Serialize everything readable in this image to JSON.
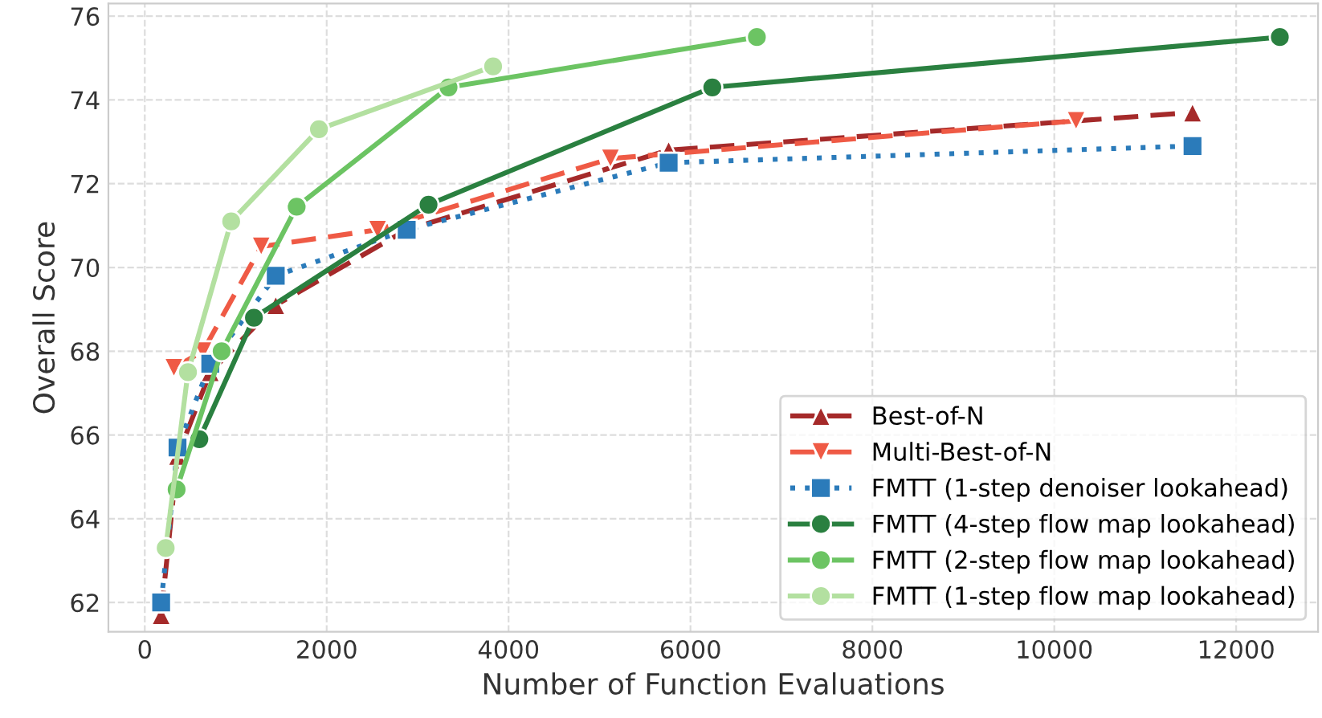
{
  "chart_data": {
    "type": "line",
    "xlabel": "Number of Function Evaluations",
    "ylabel": "Overall Score",
    "xlim": [
      -400,
      12900
    ],
    "ylim": [
      61.3,
      76.3
    ],
    "xticks": [
      0,
      2000,
      4000,
      6000,
      8000,
      10000,
      12000
    ],
    "yticks": [
      62,
      64,
      66,
      68,
      70,
      72,
      74,
      76
    ],
    "grid": true,
    "legend": "bottom right",
    "series": [
      {
        "name": "Best-of-N",
        "color": "#a52a2a",
        "marker": "triangle",
        "line_style": "dashed",
        "x": [
          180,
          360,
          720,
          1440,
          2880,
          5760,
          11520
        ],
        "values": [
          61.7,
          65.5,
          67.5,
          69.1,
          70.9,
          72.8,
          73.7
        ]
      },
      {
        "name": "Multi-Best-of-N",
        "color": "#ef5a45",
        "marker": "triangle_down",
        "line_style": "dashed",
        "x": [
          320,
          640,
          1280,
          2560,
          5120,
          10240
        ],
        "values": [
          67.6,
          68.0,
          70.5,
          70.9,
          72.6,
          73.5
        ]
      },
      {
        "name": "FMTT (1-step denoiser lookahead)",
        "color": "#2b7bba",
        "marker": "square",
        "line_style": "dotted",
        "x": [
          180,
          360,
          720,
          1440,
          2880,
          5760,
          11520
        ],
        "values": [
          62.0,
          65.7,
          67.7,
          69.8,
          70.9,
          72.5,
          72.9
        ]
      },
      {
        "name": "FMTT (4-step flow map lookahead)",
        "color": "#2a8040",
        "marker": "circle",
        "line_style": "solid",
        "x": [
          600,
          1200,
          3120,
          6240,
          12480
        ],
        "values": [
          65.9,
          68.8,
          71.5,
          74.3,
          75.5
        ]
      },
      {
        "name": "FMTT (2-step flow map lookahead)",
        "color": "#6cc463",
        "marker": "circle",
        "line_style": "solid",
        "x": [
          350,
          845,
          1670,
          3340,
          6730
        ],
        "values": [
          64.7,
          68.0,
          71.45,
          74.3,
          75.5
        ]
      },
      {
        "name": "FMTT (1-step flow map lookahead)",
        "color": "#b3e0a0",
        "marker": "circle",
        "line_style": "solid",
        "x": [
          230,
          475,
          950,
          1915,
          3830
        ],
        "values": [
          63.3,
          67.5,
          71.1,
          73.3,
          74.8
        ]
      }
    ]
  }
}
